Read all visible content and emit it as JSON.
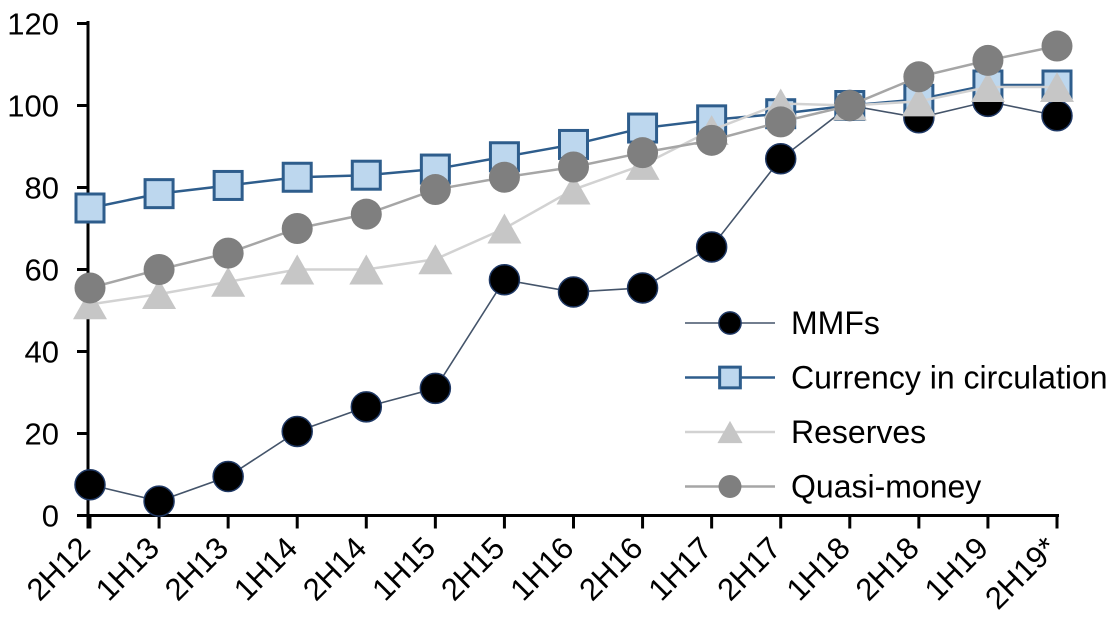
{
  "chart_data": {
    "type": "line",
    "title": "",
    "xlabel": "",
    "ylabel": "",
    "ylim": [
      0,
      120
    ],
    "yticks": [
      0,
      20,
      40,
      60,
      80,
      100,
      120
    ],
    "y_tick_labels": [
      "0",
      "20",
      "40",
      "60",
      "80",
      "100",
      "120"
    ],
    "grid": false,
    "legend_position": "right-middle",
    "index_base_note": "series converge at 100 at 1H18",
    "categories": [
      "2H12",
      "1H13",
      "2H13",
      "1H14",
      "2H14",
      "1H15",
      "2H15",
      "1H16",
      "2H16",
      "1H17",
      "2H17",
      "1H18",
      "2H18",
      "1H19",
      "2H19*"
    ],
    "series": [
      {
        "name": "MMFs",
        "marker": "circle",
        "marker_fill": "#000000",
        "marker_stroke": "#1f3864",
        "marker_stroke_width": 1.5,
        "marker_size": 30,
        "line_color": "#44546a",
        "line_width": 1.6,
        "values": [
          7.5,
          3.5,
          9.5,
          20.5,
          26.5,
          31,
          57.5,
          54.5,
          55.5,
          65.5,
          87,
          100,
          97,
          101,
          97.5
        ]
      },
      {
        "name": "Currency in circulation",
        "marker": "square",
        "marker_fill": "#bdd7ee",
        "marker_stroke": "#2e5d8c",
        "marker_stroke_width": 3,
        "marker_size": 28,
        "line_color": "#2e5d8c",
        "line_width": 2.5,
        "values": [
          75,
          78.5,
          80.5,
          82.5,
          83,
          84.5,
          87.5,
          90.5,
          94.5,
          96.5,
          98,
          100,
          101.5,
          105,
          105
        ]
      },
      {
        "name": "Reserves",
        "marker": "triangle",
        "marker_fill": "#c6c6c6",
        "marker_stroke": "none",
        "marker_stroke_width": 0,
        "marker_size": 34,
        "line_color": "#d2d2d2",
        "line_width": 2.5,
        "values": [
          51.5,
          54,
          57,
          60,
          60,
          62.5,
          70,
          79.5,
          85.5,
          94,
          100.5,
          100,
          101,
          104.5,
          104.5
        ]
      },
      {
        "name": "Quasi-money",
        "marker": "circle",
        "marker_fill": "#7f7f7f",
        "marker_stroke": "none",
        "marker_stroke_width": 0,
        "marker_size": 31,
        "line_color": "#a6a6a6",
        "line_width": 2.5,
        "values": [
          55.5,
          60,
          64,
          70,
          73.5,
          79.5,
          82.5,
          85,
          88.5,
          91.5,
          96,
          100,
          107,
          111,
          114.5
        ]
      }
    ],
    "axis_color": "#000000"
  }
}
